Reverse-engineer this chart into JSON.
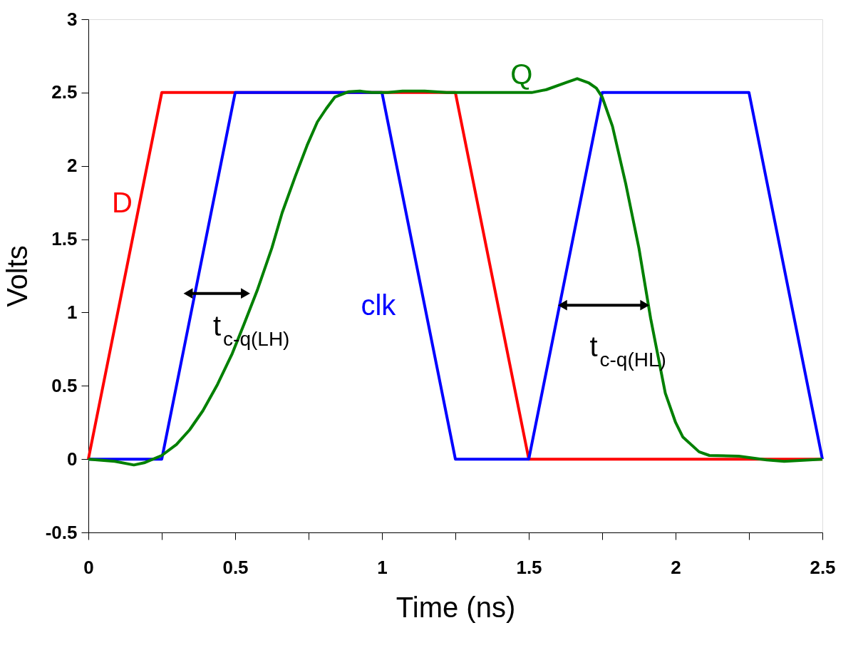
{
  "chart_data": {
    "type": "line",
    "xlabel": "Time (ns)",
    "ylabel": "Volts",
    "xlim": [
      0,
      2.5
    ],
    "xticks": [
      0,
      {
        "value": 0.25,
        "label": null
      },
      0.5,
      {
        "value": 0.75,
        "label": null
      },
      1,
      {
        "value": 1.25,
        "label": null
      },
      1.5,
      {
        "value": 1.75,
        "label": null
      },
      2,
      {
        "value": 2.25,
        "label": null
      },
      2.5
    ],
    "ylim": [
      -0.5,
      3
    ],
    "yticks": [
      -0.5,
      0,
      0.5,
      1,
      1.5,
      2,
      2.5,
      3
    ],
    "grid": false,
    "marker": "none",
    "line_style": "solid",
    "series": [
      {
        "name": "D",
        "color": "#ff0000",
        "x": [
          0,
          0.25,
          1.25,
          1.5,
          2.5
        ],
        "values": [
          0,
          2.5,
          2.5,
          0,
          0
        ]
      },
      {
        "name": "clk",
        "color": "#0000ff",
        "x": [
          0,
          0.25,
          0.5,
          1,
          1.25,
          1.5,
          1.75,
          2.25,
          2.5
        ],
        "values": [
          0,
          0,
          2.5,
          2.5,
          0,
          0,
          2.5,
          2.5,
          0
        ]
      },
      {
        "name": "Q",
        "color": "#008000",
        "x": [
          0,
          0.09,
          0.155,
          0.19,
          0.25,
          0.3,
          0.345,
          0.39,
          0.44,
          0.49,
          0.53,
          0.575,
          0.625,
          0.66,
          0.705,
          0.745,
          0.78,
          0.81,
          0.84,
          0.885,
          0.925,
          0.965,
          1.02,
          1.07,
          1.145,
          1.22,
          1.51,
          1.56,
          1.63,
          1.665,
          1.705,
          1.73,
          1.75,
          1.785,
          1.83,
          1.875,
          1.915,
          1.965,
          2.0,
          2.025,
          2.08,
          2.115,
          2.215,
          2.31,
          2.37,
          2.5
        ],
        "values": [
          0,
          -0.015,
          -0.04,
          -0.025,
          0.025,
          0.1,
          0.2,
          0.33,
          0.51,
          0.72,
          0.92,
          1.15,
          1.44,
          1.68,
          1.93,
          2.14,
          2.3,
          2.39,
          2.47,
          2.505,
          2.51,
          2.5,
          2.5,
          2.51,
          2.51,
          2.5,
          2.5,
          2.52,
          2.57,
          2.595,
          2.565,
          2.53,
          2.47,
          2.27,
          1.88,
          1.44,
          0.96,
          0.45,
          0.25,
          0.15,
          0.05,
          0.025,
          0.02,
          -0.005,
          -0.015,
          0
        ]
      },
      {
        "type": "line",
        "marker": "triangle",
        "color": "#000000",
        "x": [
          0.345,
          0.53
        ],
        "values": [
          1.13,
          1.13
        ]
      },
      {
        "type": "line",
        "marker": "triangle",
        "color": "#000000",
        "x": [
          1.62,
          1.89
        ],
        "values": [
          1.05,
          1.05
        ]
      }
    ],
    "annotations": [
      "t$_{c-q(LH)}$",
      "t$_{c-q(HL)}$"
    ]
  }
}
